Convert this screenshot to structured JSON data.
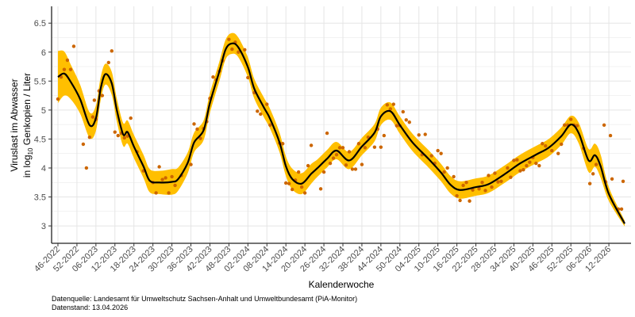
{
  "chart_data": {
    "type": "line",
    "xlabel": "Kalenderwoche",
    "ylabel_line1": "Viruslast im Abwasser",
    "ylabel_line2_prefix": "in  log",
    "ylabel_line2_sub": "10",
    "ylabel_line2_suffix": "  Genkopien / Liter",
    "ylim": [
      2.7,
      6.79
    ],
    "xlim_weeks": [
      -2,
      181
    ],
    "yticks": [
      3,
      3.5,
      4,
      4.5,
      5,
      5.5,
      6,
      6.5
    ],
    "ytick_labels": [
      "3",
      "3.5",
      "4",
      "4.5",
      "5",
      "5.5",
      "6",
      "6.5"
    ],
    "xtick_step_weeks": 6,
    "xtick_labels": [
      "46-2022",
      "52-2022",
      "06-2023",
      "12-2023",
      "18-2023",
      "24-2023",
      "30-2023",
      "36-2023",
      "42-2023",
      "48-2023",
      "02-2024",
      "08-2024",
      "14-2024",
      "20-2024",
      "26-2024",
      "32-2024",
      "38-2024",
      "44-2024",
      "50-2024",
      "04-2025",
      "10-2025",
      "16-2025",
      "22-2025",
      "28-2025",
      "34-2025",
      "40-2025",
      "46-2025",
      "52-2025",
      "06-2026",
      "12-2026"
    ],
    "grid": true,
    "colors": {
      "band": "#FFBF00",
      "line": "#000000",
      "points": "#CC6600",
      "grid": "#E5E5E5"
    },
    "smooth": {
      "weeks": [
        0,
        2,
        4,
        7,
        10,
        12,
        13.5,
        15,
        17,
        18.6,
        20.6,
        22,
        24,
        27,
        29,
        32,
        36,
        38,
        41,
        43,
        46,
        48,
        51,
        53,
        55,
        57,
        60,
        62,
        65,
        67,
        70,
        72,
        74,
        77,
        80,
        82,
        85,
        88,
        92,
        96,
        100,
        102,
        105,
        108,
        112,
        117,
        121,
        124,
        127,
        132,
        136,
        141,
        146,
        151,
        155,
        159,
        162,
        164.5,
        167.6,
        169.6,
        171.4,
        174,
        179
      ],
      "values": [
        5.57,
        5.63,
        5.49,
        5.19,
        4.74,
        4.86,
        5.37,
        5.62,
        5.46,
        5.0,
        4.58,
        4.62,
        4.37,
        4.03,
        3.78,
        3.75,
        3.76,
        3.81,
        4.09,
        4.44,
        4.65,
        5.12,
        5.67,
        6.05,
        6.15,
        6.08,
        5.74,
        5.37,
        5.05,
        4.85,
        4.44,
        4.03,
        3.81,
        3.73,
        3.9,
        4.0,
        4.16,
        4.3,
        4.13,
        4.37,
        4.61,
        4.89,
        4.98,
        4.74,
        4.44,
        4.16,
        3.92,
        3.71,
        3.62,
        3.67,
        3.72,
        3.89,
        4.08,
        4.23,
        4.35,
        4.55,
        4.75,
        4.6,
        4.13,
        4.22,
        4.03,
        3.55,
        3.04
      ],
      "ci_halfwidth": [
        0.45,
        0.38,
        0.3,
        0.25,
        0.22,
        0.22,
        0.2,
        0.18,
        0.2,
        0.2,
        0.2,
        0.2,
        0.2,
        0.2,
        0.2,
        0.2,
        0.22,
        0.2,
        0.18,
        0.17,
        0.17,
        0.17,
        0.17,
        0.17,
        0.18,
        0.17,
        0.17,
        0.17,
        0.17,
        0.17,
        0.17,
        0.17,
        0.18,
        0.18,
        0.17,
        0.15,
        0.15,
        0.15,
        0.15,
        0.15,
        0.15,
        0.15,
        0.15,
        0.15,
        0.15,
        0.15,
        0.15,
        0.15,
        0.15,
        0.15,
        0.15,
        0.15,
        0.15,
        0.15,
        0.15,
        0.15,
        0.15,
        0.18,
        0.2,
        0.2,
        0.2,
        0.12,
        0.05
      ]
    },
    "points": [
      [
        0,
        5.19
      ],
      [
        1,
        5.57
      ],
      [
        2,
        5.7
      ],
      [
        3,
        5.86
      ],
      [
        4,
        5.7
      ],
      [
        5,
        6.1
      ],
      [
        8,
        4.41
      ],
      [
        9,
        4.0
      ],
      [
        10,
        4.53
      ],
      [
        11,
        4.88
      ],
      [
        11.5,
        5.17
      ],
      [
        12,
        4.84
      ],
      [
        13,
        5.33
      ],
      [
        14,
        5.25
      ],
      [
        16,
        5.82
      ],
      [
        17,
        6.02
      ],
      [
        18,
        4.62
      ],
      [
        19,
        4.56
      ],
      [
        20,
        4.6
      ],
      [
        21,
        4.52
      ],
      [
        22,
        4.55
      ],
      [
        23,
        4.86
      ],
      [
        25,
        4.28
      ],
      [
        27,
        3.95
      ],
      [
        30,
        3.75
      ],
      [
        31,
        3.57
      ],
      [
        32,
        4.02
      ],
      [
        33,
        3.8
      ],
      [
        34,
        3.83
      ],
      [
        35,
        3.57
      ],
      [
        36,
        3.85
      ],
      [
        37,
        3.7
      ],
      [
        39,
        3.87
      ],
      [
        42,
        4.06
      ],
      [
        43,
        4.76
      ],
      [
        44,
        4.67
      ],
      [
        45,
        4.51
      ],
      [
        46,
        4.68
      ],
      [
        47,
        4.8
      ],
      [
        48,
        5.2
      ],
      [
        49,
        5.57
      ],
      [
        50,
        5.52
      ],
      [
        51,
        5.67
      ],
      [
        52,
        5.85
      ],
      [
        54,
        6.22
      ],
      [
        55,
        6.05
      ],
      [
        56,
        6.17
      ],
      [
        57,
        6.0
      ],
      [
        59,
        6.04
      ],
      [
        60,
        5.56
      ],
      [
        62,
        5.3
      ],
      [
        63,
        4.98
      ],
      [
        64,
        4.93
      ],
      [
        66,
        5.1
      ],
      [
        67,
        4.74
      ],
      [
        70,
        4.43
      ],
      [
        71,
        4.42
      ],
      [
        72,
        3.74
      ],
      [
        73,
        3.73
      ],
      [
        74,
        3.63
      ],
      [
        75,
        3.79
      ],
      [
        76,
        3.93
      ],
      [
        77,
        3.67
      ],
      [
        78,
        3.57
      ],
      [
        79,
        4.04
      ],
      [
        80,
        4.39
      ],
      [
        83,
        3.64
      ],
      [
        84,
        3.93
      ],
      [
        85,
        4.6
      ],
      [
        86,
        4.08
      ],
      [
        87,
        4.17
      ],
      [
        88,
        4.23
      ],
      [
        89,
        4.35
      ],
      [
        90,
        4.35
      ],
      [
        91,
        4.05
      ],
      [
        92,
        4.28
      ],
      [
        93,
        3.98
      ],
      [
        94,
        3.98
      ],
      [
        95,
        4.42
      ],
      [
        96,
        4.06
      ],
      [
        97,
        4.35
      ],
      [
        98,
        4.53
      ],
      [
        100,
        4.36
      ],
      [
        101,
        4.67
      ],
      [
        102,
        4.36
      ],
      [
        103,
        4.56
      ],
      [
        104,
        5.09
      ],
      [
        105,
        5.02
      ],
      [
        106,
        5.1
      ],
      [
        107,
        4.73
      ],
      [
        108,
        4.73
      ],
      [
        109,
        4.97
      ],
      [
        110,
        4.83
      ],
      [
        111,
        4.79
      ],
      [
        114,
        4.57
      ],
      [
        115,
        4.23
      ],
      [
        116,
        4.58
      ],
      [
        118,
        4.21
      ],
      [
        119,
        4.08
      ],
      [
        120,
        4.3
      ],
      [
        121,
        4.25
      ],
      [
        122,
        3.93
      ],
      [
        123,
        4.0
      ],
      [
        125,
        3.85
      ],
      [
        126,
        3.52
      ],
      [
        127,
        3.44
      ],
      [
        128,
        3.7
      ],
      [
        129,
        3.75
      ],
      [
        130,
        3.43
      ],
      [
        131,
        3.62
      ],
      [
        133,
        3.64
      ],
      [
        134,
        3.75
      ],
      [
        135,
        3.61
      ],
      [
        136,
        3.87
      ],
      [
        137,
        3.67
      ],
      [
        138,
        3.91
      ],
      [
        139,
        3.76
      ],
      [
        140,
        3.77
      ],
      [
        142,
        4.0
      ],
      [
        143,
        3.84
      ],
      [
        144,
        4.13
      ],
      [
        145,
        4.14
      ],
      [
        146,
        3.95
      ],
      [
        147,
        3.97
      ],
      [
        148,
        4.04
      ],
      [
        149,
        4.1
      ],
      [
        150,
        4.18
      ],
      [
        151,
        4.08
      ],
      [
        152,
        4.04
      ],
      [
        153,
        4.42
      ],
      [
        154,
        4.38
      ],
      [
        156,
        4.3
      ],
      [
        158,
        4.25
      ],
      [
        159,
        4.41
      ],
      [
        160,
        4.74
      ],
      [
        161,
        4.74
      ],
      [
        162,
        4.84
      ],
      [
        163,
        4.74
      ],
      [
        164,
        4.73
      ],
      [
        166,
        4.34
      ],
      [
        168,
        3.73
      ],
      [
        169,
        3.9
      ],
      [
        170,
        4.06
      ],
      [
        172.5,
        4.74
      ],
      [
        173,
        3.76
      ],
      [
        174.5,
        4.56
      ],
      [
        175,
        3.81
      ],
      [
        177,
        3.29
      ],
      [
        178,
        3.29
      ],
      [
        178.5,
        3.77
      ]
    ]
  },
  "caption": {
    "source": "Datenquelle: Landesamt für Umweltschutz Sachsen-Anhalt und Umweltbundesamt (PiA-Monitor)",
    "date": "Datenstand: 13.04.2026"
  }
}
